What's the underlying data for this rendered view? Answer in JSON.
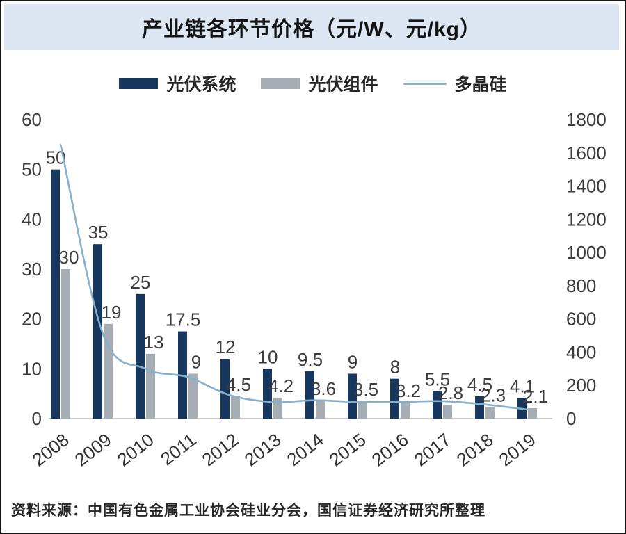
{
  "page": {
    "title": "产业链各环节价格（元/W、元/kg）",
    "source": "资料来源：中国有色金属工业协会硅业分会，国信证券经济研究所整理"
  },
  "colors": {
    "pv_system_bar": "#17375e",
    "pv_module_bar": "#a6adb5",
    "polysilicon_line": "#88afcc",
    "title_background": "#dce7f3",
    "axis_text": "#3a3a3a",
    "data_label_text": "#3d3d3d",
    "baseline": "#c9ccd2"
  },
  "chart_data": {
    "type": "bar",
    "subtype": "grouped-bar-with-line-combo",
    "title": "产业链各环节价格（元/W、元/kg）",
    "categories": [
      "2008",
      "2009",
      "2010",
      "2011",
      "2012",
      "2013",
      "2014",
      "2015",
      "2016",
      "2017",
      "2018",
      "2019"
    ],
    "series": [
      {
        "name": "光伏系统",
        "type": "bar",
        "axis": "left",
        "color": "#17375e",
        "values": [
          50,
          35,
          25,
          17.5,
          12,
          10,
          9.5,
          9,
          8,
          5.5,
          4.5,
          4.1
        ]
      },
      {
        "name": "光伏组件",
        "type": "bar",
        "axis": "left",
        "color": "#a6adb5",
        "values": [
          30,
          19,
          13,
          9,
          4.5,
          4.2,
          3.6,
          3.5,
          3.2,
          2.8,
          2.3,
          2.1
        ]
      },
      {
        "name": "多晶硅",
        "type": "line",
        "axis": "right",
        "color": "#88afcc",
        "values": [
          1650,
          510,
          300,
          250,
          140,
          100,
          110,
          100,
          100,
          105,
          85,
          55
        ]
      }
    ],
    "left_axis": {
      "min": 0,
      "max": 60,
      "step": 10,
      "ticks": [
        0,
        10,
        20,
        30,
        40,
        50,
        60
      ]
    },
    "right_axis": {
      "min": 0,
      "max": 1800,
      "step": 200,
      "ticks": [
        0,
        200,
        400,
        600,
        800,
        1000,
        1200,
        1400,
        1600,
        1800
      ]
    },
    "legend_position": "top",
    "grid": false,
    "bar_labels_shown": true,
    "x_label_rotation_deg": -38
  }
}
